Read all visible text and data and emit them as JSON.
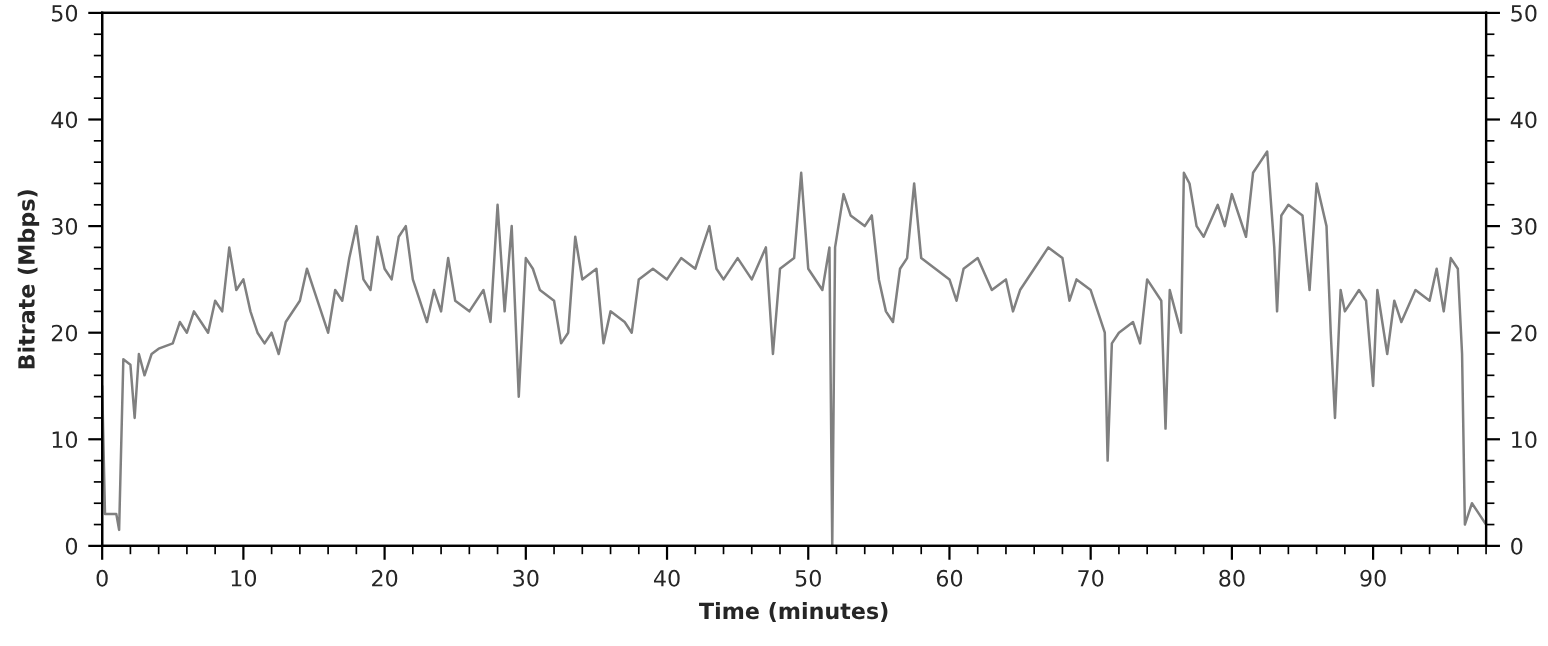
{
  "chart_data": {
    "type": "line",
    "xlabel": "Time (minutes)",
    "ylabel": "Bitrate (Mbps)",
    "xlim": [
      0,
      98
    ],
    "xticks": [
      0,
      10,
      20,
      30,
      40,
      50,
      60,
      70,
      80,
      90
    ],
    "ylim": [
      0,
      50
    ],
    "yticks": [
      0,
      10,
      20,
      30,
      40,
      50
    ],
    "y2lim": [
      0,
      50
    ],
    "y2ticks": [
      0,
      10,
      20,
      30,
      40,
      50
    ],
    "grid": false,
    "marker": "none",
    "line_style": "solid",
    "x": [
      0,
      0.2,
      1.0,
      1.2,
      1.5,
      2.0,
      2.3,
      2.6,
      3,
      3.5,
      4,
      5,
      5.5,
      6,
      6.5,
      7,
      7.5,
      8,
      8.5,
      9,
      9.5,
      10,
      10.5,
      11,
      11.5,
      12,
      12.5,
      13,
      14,
      14.5,
      15,
      16,
      16.5,
      17,
      17.5,
      18,
      18.5,
      19,
      19.5,
      20,
      20.5,
      21,
      21.5,
      22,
      23,
      23.5,
      24,
      24.5,
      25,
      26,
      27,
      27.5,
      28,
      28.5,
      29,
      29.5,
      30,
      30.5,
      31,
      32,
      32.5,
      33,
      33.5,
      34,
      35,
      35.5,
      36,
      37,
      37.5,
      38,
      39,
      40,
      41,
      42,
      43,
      43.5,
      44,
      45,
      46,
      47,
      47.5,
      48,
      49,
      49.5,
      50,
      51,
      51.5,
      51.7,
      51.9,
      52.5,
      53,
      54,
      54.5,
      55,
      55.5,
      56,
      56.5,
      57,
      57.5,
      58,
      59,
      60,
      60.5,
      61,
      62,
      63,
      64,
      64.5,
      65,
      66,
      67,
      68,
      68.5,
      69,
      70,
      71,
      71.2,
      71.5,
      72,
      73,
      73.5,
      74,
      75,
      75.3,
      75.6,
      76,
      76.4,
      76.6,
      77,
      77.5,
      78,
      79,
      79.5,
      80,
      81,
      81.5,
      82,
      82.5,
      83,
      83.2,
      83.5,
      84,
      85,
      85.5,
      86,
      86.7,
      87,
      87.3,
      87.7,
      88,
      89,
      89.5,
      90,
      90.3,
      91,
      91.5,
      92,
      93,
      94,
      94.5,
      95,
      95.5,
      96,
      96.3,
      96.5,
      97,
      97.5,
      98
    ],
    "series": [
      {
        "color": "#808080",
        "values": [
          15,
          3,
          3,
          1.5,
          17.5,
          17,
          12,
          18,
          16,
          18,
          18.5,
          19,
          21,
          20,
          22,
          21,
          20,
          23,
          22,
          28,
          24,
          25,
          22,
          20,
          19,
          20,
          18,
          21,
          23,
          26,
          24,
          20,
          24,
          23,
          27,
          30,
          25,
          24,
          29,
          26,
          25,
          29,
          30,
          25,
          21,
          24,
          22,
          27,
          23,
          22,
          24,
          21,
          32,
          22,
          30,
          14,
          27,
          26,
          24,
          23,
          19,
          20,
          29,
          25,
          26,
          19,
          22,
          21,
          20,
          25,
          26,
          25,
          27,
          26,
          30,
          26,
          25,
          27,
          25,
          28,
          18,
          26,
          27,
          35,
          26,
          24,
          28,
          0,
          28,
          33,
          31,
          30,
          31,
          25,
          22,
          21,
          26,
          27,
          34,
          27,
          26,
          25,
          23,
          26,
          27,
          24,
          25,
          22,
          24,
          26,
          28,
          27,
          23,
          25,
          24,
          20,
          8,
          19,
          20,
          21,
          19,
          25,
          23,
          11,
          24,
          22,
          20,
          35,
          34,
          30,
          29,
          32,
          30,
          33,
          29,
          35,
          36,
          37,
          28,
          22,
          31,
          32,
          31,
          24,
          34,
          30,
          20,
          12,
          24,
          22,
          24,
          23,
          15,
          24,
          18,
          23,
          21,
          24,
          23,
          26,
          22,
          27,
          26,
          18,
          2,
          4,
          3,
          2
        ]
      }
    ]
  }
}
